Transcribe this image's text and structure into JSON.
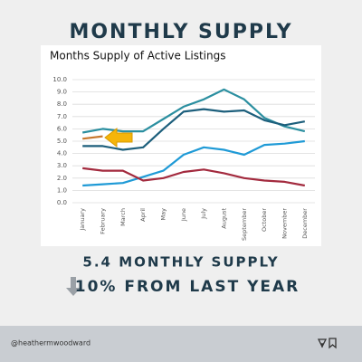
{
  "header": {
    "title": "MONTHLY SUPPLY"
  },
  "chart_data": {
    "type": "line",
    "title": "Months Supply of Active Listings",
    "categories": [
      "January",
      "February",
      "March",
      "April",
      "May",
      "June",
      "July",
      "August",
      "September",
      "October",
      "November",
      "December"
    ],
    "series": [
      {
        "color": "#2b8fa0",
        "values": [
          5.7,
          6.0,
          5.8,
          5.8,
          6.8,
          7.8,
          8.4,
          9.2,
          8.4,
          6.9,
          6.2,
          5.8
        ]
      },
      {
        "color": "#1d5f7c",
        "values": [
          4.6,
          4.6,
          4.3,
          4.5,
          6.0,
          7.4,
          7.6,
          7.4,
          7.5,
          6.7,
          6.3,
          6.6
        ]
      },
      {
        "color": "#1f9ad6",
        "values": [
          1.4,
          1.5,
          1.6,
          2.1,
          2.6,
          3.9,
          4.5,
          4.3,
          3.9,
          4.7,
          4.8,
          5.0
        ]
      },
      {
        "color": "#a32a3e",
        "values": [
          2.8,
          2.6,
          2.6,
          1.8,
          2.0,
          2.5,
          2.7,
          2.4,
          2.0,
          1.8,
          1.7,
          1.4
        ]
      },
      {
        "color": "#c8782e",
        "values": [
          5.2,
          5.4,
          null,
          null,
          null,
          null,
          null,
          null,
          null,
          null,
          null,
          null
        ]
      }
    ],
    "ylim": [
      0,
      10
    ],
    "yticks": [
      {
        "value": 0,
        "label": "0.0"
      },
      {
        "value": 1,
        "label": "1.0"
      },
      {
        "value": 2,
        "label": "2.0"
      },
      {
        "value": 3,
        "label": "3.0"
      },
      {
        "value": 4,
        "label": "4.0"
      },
      {
        "value": 5,
        "label": "5.0"
      },
      {
        "value": 6,
        "label": "6.0"
      },
      {
        "value": 7,
        "label": "7.0"
      },
      {
        "value": 8,
        "label": "8.0"
      },
      {
        "value": 9,
        "label": "9.0"
      },
      {
        "value": 10,
        "label": "10.0"
      }
    ],
    "grid": true
  },
  "summary": {
    "line1": "5.4 MONTHLY SUPPLY",
    "line2": "10% FROM LAST YEAR"
  },
  "footer": {
    "handle": "@heathermwoodward"
  }
}
